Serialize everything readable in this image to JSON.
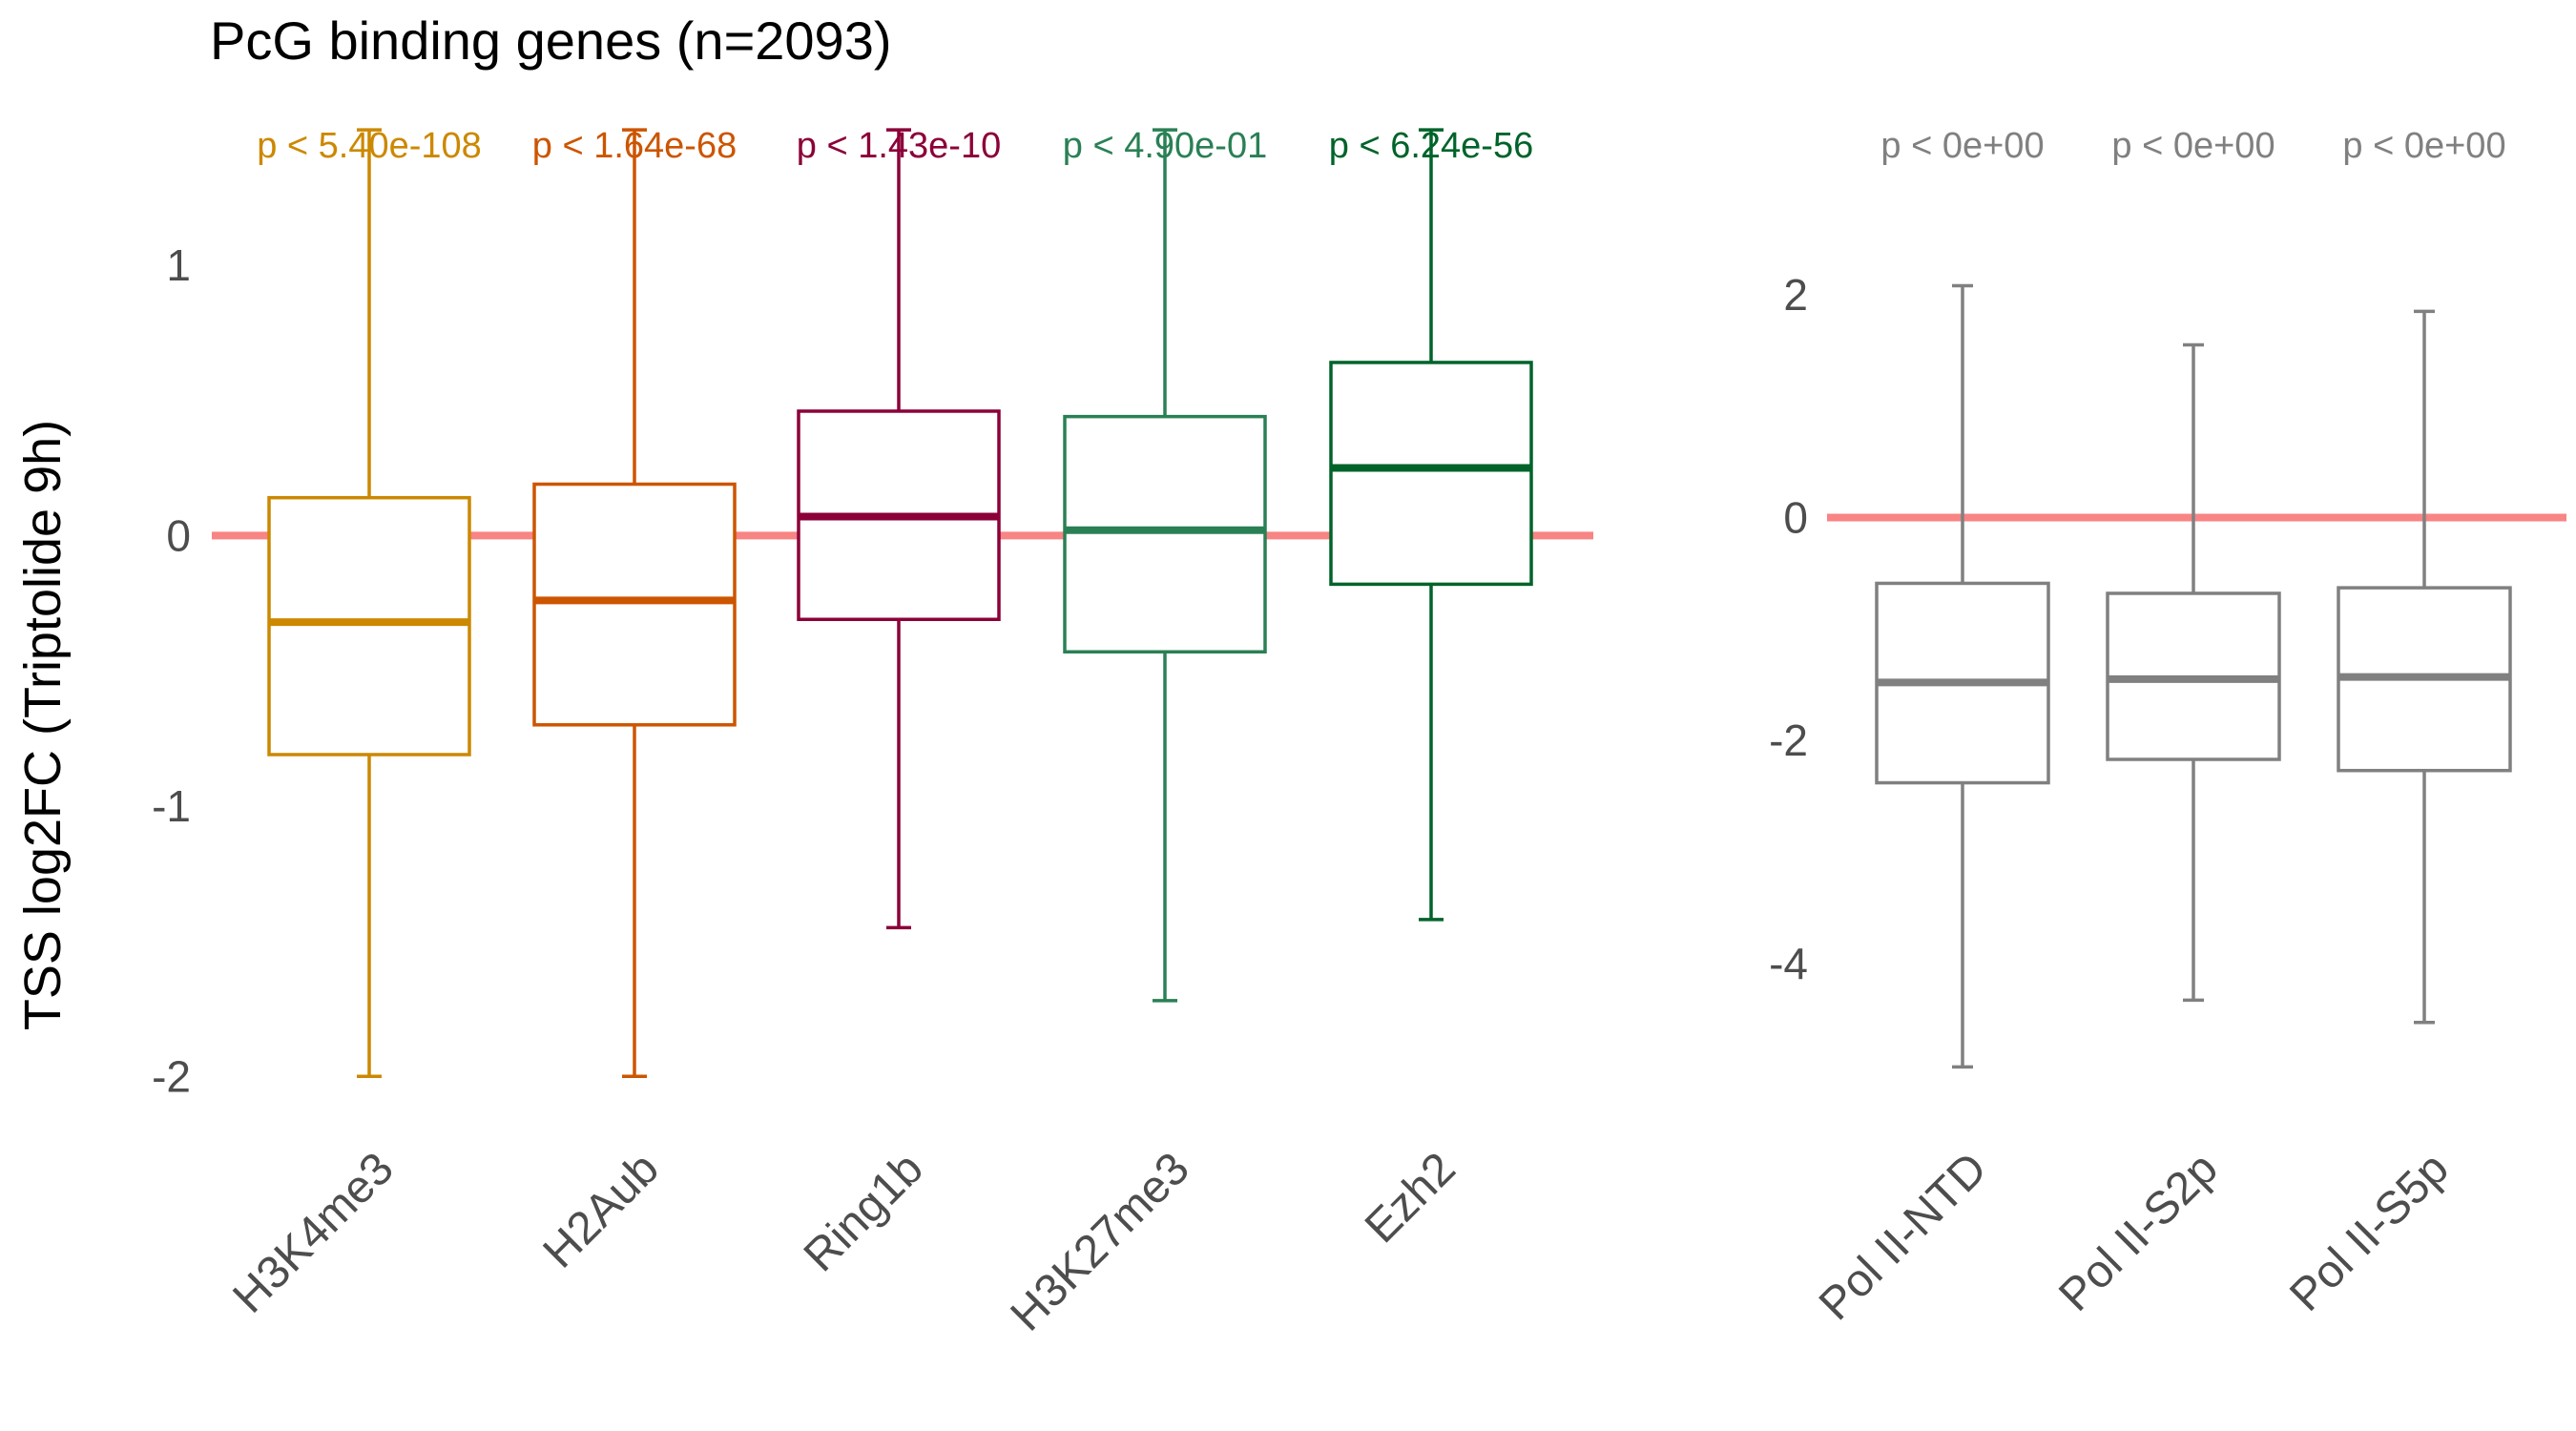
{
  "title": "PcG binding genes (n=2093)",
  "ylabel": "TSS log2FC (Triptolide 9h)",
  "colors": {
    "zero_line": "#f88484",
    "text": "#4d4d4d"
  },
  "chart_data": [
    {
      "type": "box",
      "ylim": [
        -2.2,
        1.55
      ],
      "yticks": [
        -2,
        -1,
        0,
        1
      ],
      "ytick_labels": [
        "-2",
        "-1",
        "0",
        "1"
      ],
      "reference_line": 0,
      "categories": [
        "H3K4me3",
        "H2Aub",
        "Ring1b",
        "H3K27me3",
        "Ezh2"
      ],
      "pvalues": [
        "p < 5.40e-108",
        "p < 1.64e-68",
        "p < 1.43e-10",
        "p < 4.90e-01",
        "p < 6.24e-56"
      ],
      "colors": [
        "#cc8800",
        "#cc5500",
        "#8b0038",
        "#2a8055",
        "#00632a"
      ],
      "boxes": [
        {
          "whisker_low": -2.0,
          "q1": -0.81,
          "median": -0.32,
          "q3": 0.14,
          "whisker_high": 1.5
        },
        {
          "whisker_low": -2.0,
          "q1": -0.7,
          "median": -0.24,
          "q3": 0.19,
          "whisker_high": 1.5
        },
        {
          "whisker_low": -1.45,
          "q1": -0.31,
          "median": 0.07,
          "q3": 0.46,
          "whisker_high": 1.5
        },
        {
          "whisker_low": -1.72,
          "q1": -0.43,
          "median": 0.02,
          "q3": 0.44,
          "whisker_high": 1.5
        },
        {
          "whisker_low": -1.42,
          "q1": -0.18,
          "median": 0.25,
          "q3": 0.64,
          "whisker_high": 1.5
        }
      ]
    },
    {
      "type": "box",
      "ylim": [
        -5.5,
        3.6
      ],
      "yticks": [
        -4,
        -2,
        0,
        2
      ],
      "ytick_labels": [
        "-4",
        "-2",
        "0",
        "2"
      ],
      "reference_line": 0,
      "categories": [
        "Pol II-NTD",
        "Pol II-S2p",
        "Pol II-S5p"
      ],
      "pvalues": [
        "p < 0e+00",
        "p < 0e+00",
        "p < 0e+00"
      ],
      "colors": [
        "#808080",
        "#808080",
        "#808080"
      ],
      "boxes": [
        {
          "whisker_low": -4.93,
          "q1": -2.38,
          "median": -1.48,
          "q3": -0.59,
          "whisker_high": 2.08
        },
        {
          "whisker_low": -4.33,
          "q1": -2.17,
          "median": -1.45,
          "q3": -0.68,
          "whisker_high": 1.55
        },
        {
          "whisker_low": -4.53,
          "q1": -2.27,
          "median": -1.43,
          "q3": -0.63,
          "whisker_high": 1.85
        }
      ]
    }
  ]
}
